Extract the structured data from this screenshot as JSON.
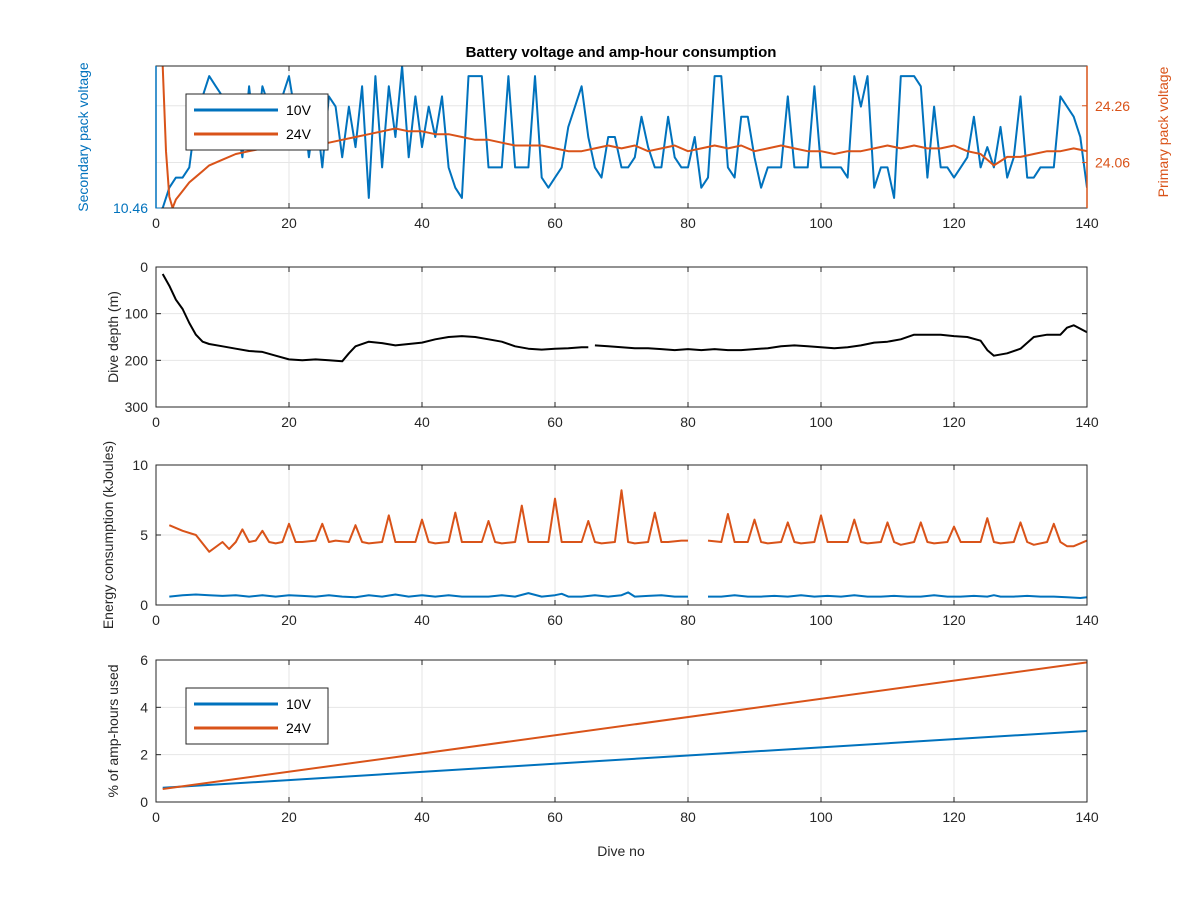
{
  "figure": {
    "title": "Battery voltage and amp-hour consumption",
    "xlabel": "Dive no"
  },
  "colors": {
    "blue": "#0072BD",
    "orange": "#D95319",
    "black": "#000000",
    "grid": "#e6e6e6",
    "axis": "#262626"
  },
  "chart_data": [
    {
      "type": "line",
      "title": "Battery voltage and amp-hour consumption",
      "xlim": [
        0,
        140
      ],
      "xticks": [
        0,
        20,
        40,
        60,
        80,
        100,
        120,
        140
      ],
      "left_axis": {
        "label": "Secondary pack voltage",
        "ylim": [
          10.46,
          10.6
        ],
        "ticks": [
          10.46
        ],
        "color": "#0072BD"
      },
      "right_axis": {
        "label": "Primary pack voltage",
        "ylim": [
          23.9,
          24.4
        ],
        "ticks": [
          24.06,
          24.26
        ],
        "color": "#D95319"
      },
      "legend": {
        "position": "top-left",
        "entries": [
          "10V",
          "24V"
        ]
      },
      "grid": true,
      "series": [
        {
          "name": "10V",
          "axis": "left",
          "x": [
            1,
            2,
            3,
            4,
            5,
            6,
            7,
            8,
            9,
            10,
            11,
            12,
            13,
            14,
            15,
            16,
            17,
            18,
            19,
            20,
            21,
            22,
            23,
            24,
            25,
            26,
            27,
            28,
            29,
            30,
            31,
            32,
            33,
            34,
            35,
            36,
            37,
            38,
            39,
            40,
            41,
            42,
            43,
            44,
            45,
            46,
            47,
            48,
            49,
            50,
            51,
            52,
            53,
            54,
            55,
            56,
            57,
            58,
            59,
            60,
            61,
            62,
            63,
            64,
            65,
            66,
            67,
            68,
            69,
            70,
            71,
            72,
            73,
            74,
            75,
            76,
            77,
            78,
            79,
            80,
            81,
            82,
            83,
            84,
            85,
            86,
            87,
            88,
            89,
            90,
            91,
            92,
            93,
            94,
            95,
            96,
            97,
            98,
            99,
            100,
            101,
            102,
            103,
            104,
            105,
            106,
            107,
            108,
            109,
            110,
            111,
            112,
            113,
            114,
            115,
            116,
            117,
            118,
            119,
            120,
            121,
            122,
            123,
            124,
            125,
            126,
            127,
            128,
            129,
            130,
            131,
            132,
            133,
            134,
            135,
            136,
            137,
            138,
            139,
            140
          ],
          "y": [
            10.46,
            10.48,
            10.49,
            10.49,
            10.5,
            10.55,
            10.57,
            10.59,
            10.58,
            10.57,
            10.52,
            10.55,
            10.51,
            10.58,
            10.52,
            10.58,
            10.56,
            10.53,
            10.57,
            10.59,
            10.55,
            10.57,
            10.51,
            10.56,
            10.5,
            10.57,
            10.56,
            10.51,
            10.56,
            10.52,
            10.58,
            10.47,
            10.59,
            10.5,
            10.58,
            10.53,
            10.6,
            10.51,
            10.57,
            10.52,
            10.56,
            10.53,
            10.57,
            10.5,
            10.48,
            10.47,
            10.59,
            10.59,
            10.59,
            10.5,
            10.5,
            10.5,
            10.59,
            10.5,
            10.5,
            10.5,
            10.59,
            10.49,
            10.48,
            10.49,
            10.5,
            10.54,
            10.56,
            10.58,
            10.53,
            10.5,
            10.49,
            10.53,
            10.53,
            10.5,
            10.5,
            10.51,
            10.55,
            10.52,
            10.5,
            10.5,
            10.55,
            10.51,
            10.5,
            10.5,
            10.53,
            10.48,
            10.49,
            10.59,
            10.59,
            10.5,
            10.49,
            10.55,
            10.55,
            10.51,
            10.48,
            10.5,
            10.5,
            10.5,
            10.57,
            10.5,
            10.5,
            10.5,
            10.58,
            10.5,
            10.5,
            10.5,
            10.5,
            10.49,
            10.59,
            10.56,
            10.59,
            10.48,
            10.5,
            10.5,
            10.47,
            10.59,
            10.59,
            10.59,
            10.58,
            10.49,
            10.56,
            10.5,
            10.5,
            10.49,
            10.5,
            10.51,
            10.55,
            10.5,
            10.52,
            10.5,
            10.54,
            10.49,
            10.51,
            10.57,
            10.49,
            10.49,
            10.5,
            10.5,
            10.5,
            10.57,
            10.56,
            10.55,
            10.53,
            10.48
          ]
        },
        {
          "name": "24V",
          "axis": "right",
          "x": [
            1,
            1.5,
            2,
            2.5,
            3,
            4,
            5,
            6,
            7,
            8,
            10,
            12,
            14,
            16,
            18,
            20,
            22,
            24,
            26,
            28,
            30,
            32,
            34,
            36,
            38,
            40,
            42,
            44,
            46,
            48,
            50,
            52,
            54,
            56,
            58,
            60,
            62,
            64,
            66,
            68,
            70,
            72,
            74,
            76,
            78,
            80,
            82,
            84,
            86,
            88,
            90,
            92,
            94,
            96,
            98,
            100,
            102,
            104,
            106,
            108,
            110,
            112,
            114,
            116,
            118,
            120,
            122,
            124,
            126,
            128,
            130,
            132,
            134,
            136,
            138,
            140
          ],
          "y": [
            24.4,
            24.1,
            23.94,
            23.9,
            23.93,
            23.96,
            23.99,
            24.01,
            24.03,
            24.05,
            24.07,
            24.09,
            24.1,
            24.11,
            24.12,
            24.12,
            24.13,
            24.12,
            24.13,
            24.14,
            24.15,
            24.16,
            24.17,
            24.18,
            24.17,
            24.17,
            24.16,
            24.16,
            24.15,
            24.14,
            24.14,
            24.13,
            24.12,
            24.12,
            24.12,
            24.11,
            24.1,
            24.1,
            24.11,
            24.12,
            24.11,
            24.12,
            24.1,
            24.11,
            24.12,
            24.1,
            24.11,
            24.12,
            24.11,
            24.12,
            24.1,
            24.11,
            24.12,
            24.11,
            24.1,
            24.1,
            24.09,
            24.1,
            24.1,
            24.11,
            24.12,
            24.11,
            24.12,
            24.11,
            24.11,
            24.12,
            24.1,
            24.09,
            24.05,
            24.08,
            24.08,
            24.09,
            24.1,
            24.1,
            24.11,
            24.1
          ]
        }
      ]
    },
    {
      "type": "line",
      "ylabel": "Dive depth (m)",
      "xlim": [
        0,
        140
      ],
      "ylim": [
        0,
        300
      ],
      "y_reversed": true,
      "xticks": [
        0,
        20,
        40,
        60,
        80,
        100,
        120,
        140
      ],
      "yticks": [
        0,
        100,
        200,
        300
      ],
      "grid": true,
      "series": [
        {
          "x": [
            1,
            2,
            3,
            4,
            5,
            6,
            7,
            8,
            10,
            12,
            14,
            16,
            18,
            20,
            22,
            24,
            26,
            28,
            29,
            30,
            32,
            34,
            36,
            38,
            40,
            42,
            44,
            46,
            48,
            50,
            52,
            54,
            56,
            58,
            60,
            62,
            64,
            65,
            null,
            66,
            68,
            70,
            72,
            74,
            76,
            78,
            80,
            82,
            84,
            86,
            88,
            90,
            92,
            94,
            96,
            98,
            100,
            102,
            104,
            106,
            108,
            110,
            112,
            114,
            116,
            118,
            120,
            122,
            124,
            125,
            126,
            128,
            130,
            132,
            134,
            136,
            137,
            138,
            140
          ],
          "y": [
            15,
            40,
            70,
            90,
            120,
            145,
            160,
            165,
            170,
            175,
            180,
            182,
            190,
            198,
            200,
            198,
            200,
            202,
            185,
            170,
            160,
            163,
            168,
            165,
            162,
            155,
            150,
            148,
            150,
            155,
            160,
            170,
            175,
            177,
            175,
            174,
            172,
            172,
            null,
            168,
            170,
            172,
            174,
            174,
            176,
            178,
            176,
            178,
            176,
            178,
            178,
            176,
            174,
            170,
            168,
            170,
            172,
            174,
            172,
            168,
            162,
            160,
            155,
            145,
            145,
            145,
            148,
            150,
            158,
            178,
            190,
            185,
            175,
            150,
            145,
            145,
            130,
            125,
            140
          ]
        }
      ]
    },
    {
      "type": "line",
      "ylabel": "Energy consumption (kJoules)",
      "xlim": [
        0,
        140
      ],
      "ylim": [
        0,
        10
      ],
      "xticks": [
        0,
        20,
        40,
        60,
        80,
        100,
        120,
        140
      ],
      "yticks": [
        0,
        5,
        10
      ],
      "grid": true,
      "series": [
        {
          "name": "24V",
          "x": [
            2,
            4,
            6,
            8,
            10,
            11,
            12,
            13,
            14,
            15,
            16,
            17,
            18,
            19,
            20,
            21,
            22,
            24,
            25,
            26,
            27,
            29,
            30,
            31,
            32,
            34,
            35,
            36,
            37,
            39,
            40,
            41,
            42,
            44,
            45,
            46,
            47,
            49,
            50,
            51,
            52,
            54,
            55,
            56,
            57,
            59,
            60,
            61,
            62,
            64,
            65,
            66,
            67,
            69,
            70,
            71,
            72,
            74,
            75,
            76,
            77,
            79,
            80,
            null,
            83,
            85,
            86,
            87,
            89,
            90,
            91,
            92,
            94,
            95,
            96,
            97,
            99,
            100,
            101,
            102,
            104,
            105,
            106,
            107,
            109,
            110,
            111,
            112,
            114,
            115,
            116,
            117,
            119,
            120,
            121,
            122,
            124,
            125,
            126,
            127,
            129,
            130,
            131,
            132,
            134,
            135,
            136,
            137,
            138,
            140
          ],
          "y": [
            5.7,
            5.3,
            5.0,
            3.8,
            4.5,
            4.0,
            4.5,
            5.4,
            4.5,
            4.6,
            5.3,
            4.5,
            4.4,
            4.5,
            5.8,
            4.5,
            4.5,
            4.6,
            5.8,
            4.5,
            4.6,
            4.5,
            5.7,
            4.5,
            4.4,
            4.5,
            6.4,
            4.5,
            4.5,
            4.5,
            6.1,
            4.5,
            4.4,
            4.5,
            6.6,
            4.5,
            4.5,
            4.5,
            6.0,
            4.5,
            4.4,
            4.5,
            7.1,
            4.5,
            4.5,
            4.5,
            7.6,
            4.5,
            4.5,
            4.5,
            6.0,
            4.5,
            4.4,
            4.5,
            8.2,
            4.5,
            4.4,
            4.5,
            6.6,
            4.5,
            4.5,
            4.6,
            4.6,
            null,
            4.6,
            4.5,
            6.5,
            4.5,
            4.5,
            6.1,
            4.5,
            4.4,
            4.5,
            5.9,
            4.5,
            4.4,
            4.5,
            6.4,
            4.5,
            4.5,
            4.5,
            6.1,
            4.5,
            4.4,
            4.5,
            5.9,
            4.5,
            4.3,
            4.5,
            5.9,
            4.5,
            4.4,
            4.5,
            5.6,
            4.5,
            4.5,
            4.5,
            6.2,
            4.5,
            4.4,
            4.5,
            5.9,
            4.5,
            4.3,
            4.5,
            5.8,
            4.5,
            4.2,
            4.2,
            4.6
          ]
        },
        {
          "name": "10V",
          "x": [
            2,
            4,
            6,
            8,
            10,
            12,
            14,
            16,
            18,
            20,
            22,
            24,
            26,
            28,
            30,
            32,
            34,
            36,
            38,
            40,
            42,
            44,
            46,
            48,
            50,
            52,
            54,
            56,
            58,
            60,
            61,
            62,
            64,
            66,
            68,
            70,
            71,
            72,
            74,
            76,
            78,
            80,
            null,
            83,
            85,
            87,
            89,
            91,
            93,
            95,
            97,
            99,
            101,
            103,
            105,
            107,
            109,
            111,
            113,
            115,
            117,
            119,
            121,
            123,
            125,
            126,
            127,
            129,
            131,
            133,
            135,
            137,
            139,
            140
          ],
          "y": [
            0.6,
            0.7,
            0.75,
            0.7,
            0.65,
            0.7,
            0.6,
            0.7,
            0.6,
            0.7,
            0.65,
            0.6,
            0.7,
            0.6,
            0.55,
            0.7,
            0.6,
            0.75,
            0.6,
            0.7,
            0.6,
            0.7,
            0.6,
            0.6,
            0.6,
            0.7,
            0.6,
            0.85,
            0.6,
            0.7,
            0.8,
            0.6,
            0.6,
            0.7,
            0.6,
            0.7,
            0.9,
            0.6,
            0.65,
            0.7,
            0.6,
            0.6,
            null,
            0.6,
            0.6,
            0.7,
            0.6,
            0.6,
            0.65,
            0.6,
            0.7,
            0.6,
            0.65,
            0.6,
            0.7,
            0.6,
            0.6,
            0.65,
            0.6,
            0.6,
            0.7,
            0.6,
            0.6,
            0.65,
            0.6,
            0.7,
            0.6,
            0.6,
            0.65,
            0.6,
            0.6,
            0.55,
            0.5,
            0.55
          ]
        }
      ]
    },
    {
      "type": "line",
      "ylabel": "% of amp-hours used",
      "xlim": [
        0,
        140
      ],
      "ylim": [
        0,
        6
      ],
      "xticks": [
        0,
        20,
        40,
        60,
        80,
        100,
        120,
        140
      ],
      "yticks": [
        0,
        2,
        4,
        6
      ],
      "legend": {
        "position": "top-left",
        "entries": [
          "10V",
          "24V"
        ]
      },
      "grid": true,
      "series": [
        {
          "name": "10V",
          "x": [
            1,
            140
          ],
          "y": [
            0.6,
            3.0
          ]
        },
        {
          "name": "24V",
          "x": [
            1,
            140
          ],
          "y": [
            0.55,
            5.9
          ]
        }
      ]
    }
  ]
}
